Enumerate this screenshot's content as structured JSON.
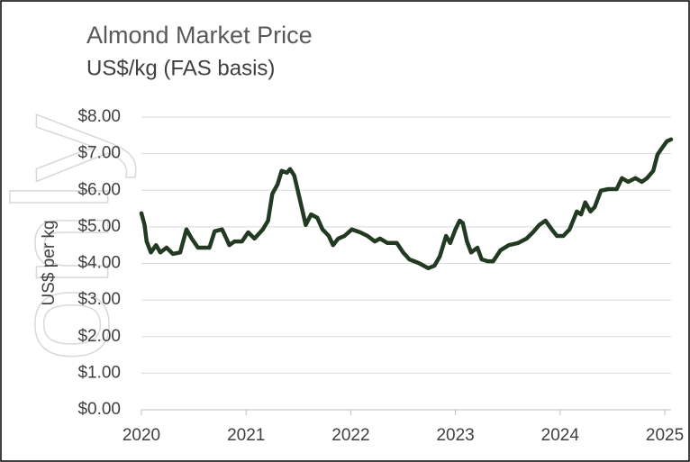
{
  "chart_data": {
    "type": "line",
    "title": "Almond Market Price",
    "subtitle": "US$/kg (FAS basis)",
    "y_label": "US$ per kg",
    "watermark": "only",
    "x": [
      2020.0,
      2020.03,
      2020.05,
      2020.09,
      2020.14,
      2020.18,
      2020.24,
      2020.3,
      2020.37,
      2020.43,
      2020.48,
      2020.54,
      2020.65,
      2020.7,
      2020.77,
      2020.8,
      2020.84,
      2020.89,
      2020.96,
      2021.02,
      2021.08,
      2021.16,
      2021.21,
      2021.25,
      2021.3,
      2021.34,
      2021.39,
      2021.42,
      2021.46,
      2021.51,
      2021.57,
      2021.62,
      2021.68,
      2021.73,
      2021.79,
      2021.83,
      2021.88,
      2021.94,
      2022.01,
      2022.09,
      2022.16,
      2022.23,
      2022.28,
      2022.35,
      2022.44,
      2022.5,
      2022.56,
      2022.65,
      2022.74,
      2022.8,
      2022.85,
      2022.91,
      2022.95,
      2023.0,
      2023.04,
      2023.07,
      2023.11,
      2023.15,
      2023.21,
      2023.25,
      2023.31,
      2023.36,
      2023.43,
      2023.51,
      2023.6,
      2023.68,
      2023.74,
      2023.8,
      2023.86,
      2023.92,
      2023.97,
      2024.03,
      2024.09,
      2024.16,
      2024.2,
      2024.24,
      2024.29,
      2024.33,
      2024.39,
      2024.46,
      2024.54,
      2024.59,
      2024.65,
      2024.72,
      2024.78,
      2024.83,
      2024.89,
      2024.93,
      2024.97,
      2025.02,
      2025.06
    ],
    "series": [
      {
        "name": "Almond price",
        "color": "#233a22",
        "values": [
          5.37,
          5.05,
          4.6,
          4.3,
          4.5,
          4.3,
          4.43,
          4.26,
          4.3,
          4.93,
          4.68,
          4.43,
          4.43,
          4.88,
          4.93,
          4.75,
          4.5,
          4.6,
          4.6,
          4.85,
          4.68,
          4.93,
          5.17,
          5.9,
          6.16,
          6.53,
          6.48,
          6.58,
          6.4,
          5.79,
          5.05,
          5.34,
          5.25,
          4.93,
          4.75,
          4.5,
          4.68,
          4.75,
          4.93,
          4.85,
          4.75,
          4.6,
          4.68,
          4.56,
          4.56,
          4.3,
          4.11,
          4.01,
          3.87,
          3.94,
          4.19,
          4.75,
          4.56,
          4.93,
          5.17,
          5.1,
          4.6,
          4.3,
          4.43,
          4.11,
          4.06,
          4.06,
          4.36,
          4.5,
          4.56,
          4.68,
          4.85,
          5.05,
          5.17,
          4.93,
          4.75,
          4.75,
          4.93,
          5.42,
          5.34,
          5.67,
          5.42,
          5.54,
          5.99,
          6.03,
          6.03,
          6.33,
          6.23,
          6.33,
          6.23,
          6.33,
          6.53,
          6.97,
          7.14,
          7.34,
          7.39
        ]
      }
    ],
    "xlim": [
      2020,
      2025.06
    ],
    "xticks": [
      2020,
      2021,
      2022,
      2023,
      2024,
      2025
    ],
    "ylim": [
      0,
      8
    ],
    "yticks": [
      {
        "value": 0,
        "label": "$0.00"
      },
      {
        "value": 1,
        "label": "$1.00"
      },
      {
        "value": 2,
        "label": "$2.00"
      },
      {
        "value": 3,
        "label": "$3.00"
      },
      {
        "value": 4,
        "label": "$4.00"
      },
      {
        "value": 5,
        "label": "$5.00"
      },
      {
        "value": 6,
        "label": "$6.00"
      },
      {
        "value": 7,
        "label": "$7.00"
      },
      {
        "value": 8,
        "label": "$8.00"
      }
    ],
    "grid": true
  }
}
